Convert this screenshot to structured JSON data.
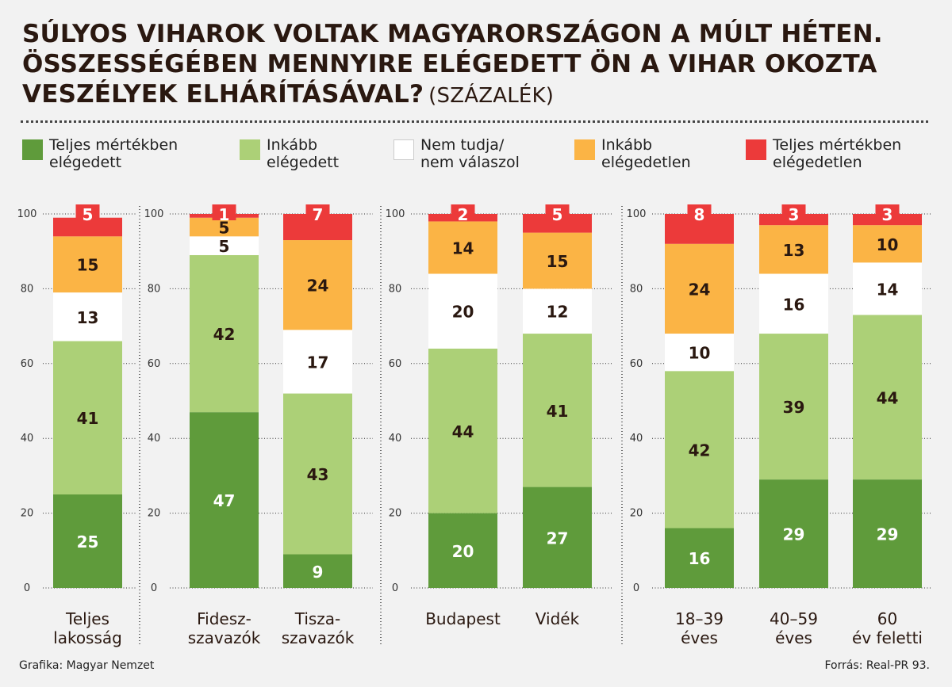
{
  "title": {
    "line1": "SÚLYOS VIHAROK VOLTAK MAGYARORSZÁGON A MÚLT HÉTEN.",
    "line2": "ÖSSZESSÉGÉBEN MENNYIRE ELÉGEDETT ÖN A VIHAR OKOZTA",
    "line3": "VESZÉLYEK ELHÁRÍTÁSÁVAL?",
    "unit": "(SZÁZALÉK)"
  },
  "colors": {
    "very_satisfied": "#5f9b3b",
    "rather_satisfied": "#acd077",
    "dont_know": "#ffffff",
    "rather_dissatisfied": "#fbb445",
    "very_dissatisfied": "#ec3a3a"
  },
  "legend": [
    {
      "label": "Teljes mértékben\nelégedett",
      "color_key": "very_satisfied"
    },
    {
      "label": "Inkább\nelégedett",
      "color_key": "rather_satisfied"
    },
    {
      "label": "Nem tudja/\nnem válaszol",
      "color_key": "dont_know"
    },
    {
      "label": "Inkább\nelégedetlen",
      "color_key": "rather_dissatisfied"
    },
    {
      "label": "Teljes mértékben\nelégedetlen",
      "color_key": "very_dissatisfied"
    }
  ],
  "chart_data": {
    "type": "bar",
    "stacked": true,
    "ylim": [
      0,
      100
    ],
    "yticks": [
      "0",
      "20",
      "40",
      "60",
      "80",
      "100"
    ],
    "groups": [
      {
        "categories": [
          "Teljes\nlakosság"
        ]
      },
      {
        "categories": [
          "Fidesz-\nszavazók",
          "Tisza-\nszavazók"
        ]
      },
      {
        "categories": [
          "Budapest",
          "Vidék"
        ]
      },
      {
        "categories": [
          "18–39\néves",
          "40–59\néves",
          "60\név feletti"
        ]
      }
    ],
    "categories": [
      "Teljes\nlakosság",
      "Fidesz-\nszavazók",
      "Tisza-\nszavazók",
      "Budapest",
      "Vidék",
      "18–39\néves",
      "40–59\néves",
      "60\név feletti"
    ],
    "series": [
      {
        "name": "Teljes mértékben elégedett",
        "color_key": "very_satisfied",
        "values": [
          25,
          47,
          9,
          20,
          27,
          16,
          29,
          29
        ]
      },
      {
        "name": "Inkább elégedett",
        "color_key": "rather_satisfied",
        "values": [
          41,
          42,
          43,
          44,
          41,
          42,
          39,
          44
        ]
      },
      {
        "name": "Nem tudja/nem válaszol",
        "color_key": "dont_know",
        "values": [
          13,
          5,
          17,
          20,
          12,
          10,
          16,
          14
        ]
      },
      {
        "name": "Inkább elégedetlen",
        "color_key": "rather_dissatisfied",
        "values": [
          15,
          5,
          24,
          14,
          15,
          24,
          13,
          10
        ]
      },
      {
        "name": "Teljes mértékben elégedetlen",
        "color_key": "very_dissatisfied",
        "values": [
          5,
          1,
          7,
          2,
          5,
          8,
          3,
          3
        ]
      }
    ],
    "label_colors": {
      "very_satisfied": "#ffffff",
      "rather_satisfied": "#2a1810",
      "dont_know": "#2a1810",
      "rather_dissatisfied": "#2a1810",
      "very_dissatisfied": "#ffffff"
    }
  },
  "footer": {
    "credit": "Grafika: Magyar Nemzet",
    "source": "Forrás: Real-PR 93."
  }
}
